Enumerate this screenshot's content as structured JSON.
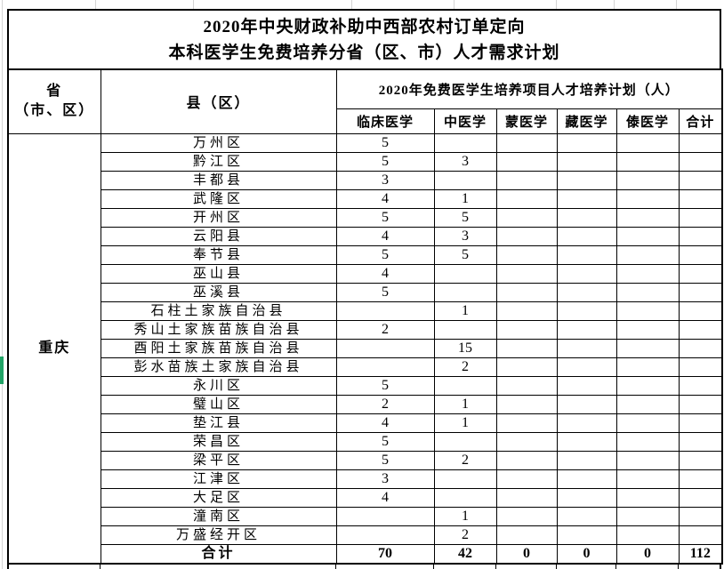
{
  "title": {
    "line1": "2020年中央财政补助中西部农村订单定向",
    "line2": "本科医学生免费培养分省（区、市）人才需求计划"
  },
  "table": {
    "province_col_header": {
      "line1": "省",
      "line2": "（市、区）"
    },
    "county_col_header": "县（区）",
    "group_header": "2020年免费医学生培养项目人才培养计划（人）",
    "columns": [
      "临床医学",
      "中医学",
      "蒙医学",
      "藏医学",
      "傣医学",
      "合计"
    ],
    "province": "重庆",
    "rows": [
      {
        "county": "万州区",
        "values": [
          "5",
          "",
          "",
          "",
          "",
          ""
        ]
      },
      {
        "county": "黔江区",
        "values": [
          "5",
          "3",
          "",
          "",
          "",
          ""
        ]
      },
      {
        "county": "丰都县",
        "values": [
          "3",
          "",
          "",
          "",
          "",
          ""
        ]
      },
      {
        "county": "武隆区",
        "values": [
          "4",
          "1",
          "",
          "",
          "",
          ""
        ]
      },
      {
        "county": "开州区",
        "values": [
          "5",
          "5",
          "",
          "",
          "",
          ""
        ]
      },
      {
        "county": "云阳县",
        "values": [
          "4",
          "3",
          "",
          "",
          "",
          ""
        ]
      },
      {
        "county": "奉节县",
        "values": [
          "5",
          "5",
          "",
          "",
          "",
          ""
        ]
      },
      {
        "county": "巫山县",
        "values": [
          "4",
          "",
          "",
          "",
          "",
          ""
        ]
      },
      {
        "county": "巫溪县",
        "values": [
          "5",
          "",
          "",
          "",
          "",
          ""
        ]
      },
      {
        "county": "石柱土家族自治县",
        "values": [
          "",
          "1",
          "",
          "",
          "",
          ""
        ]
      },
      {
        "county": "秀山土家族苗族自治县",
        "values": [
          "2",
          "",
          "",
          "",
          "",
          ""
        ]
      },
      {
        "county": "酉阳土家族苗族自治县",
        "values": [
          "",
          "15",
          "",
          "",
          "",
          ""
        ]
      },
      {
        "county": "彭水苗族土家族自治县",
        "values": [
          "",
          "2",
          "",
          "",
          "",
          ""
        ]
      },
      {
        "county": "永川区",
        "values": [
          "5",
          "",
          "",
          "",
          "",
          ""
        ]
      },
      {
        "county": "璧山区",
        "values": [
          "2",
          "1",
          "",
          "",
          "",
          ""
        ]
      },
      {
        "county": "垫江县",
        "values": [
          "4",
          "1",
          "",
          "",
          "",
          ""
        ]
      },
      {
        "county": "荣昌区",
        "values": [
          "5",
          "",
          "",
          "",
          "",
          ""
        ]
      },
      {
        "county": "梁平区",
        "values": [
          "5",
          "2",
          "",
          "",
          "",
          ""
        ]
      },
      {
        "county": "江津区",
        "values": [
          "3",
          "",
          "",
          "",
          "",
          ""
        ]
      },
      {
        "county": "大足区",
        "values": [
          "4",
          "",
          "",
          "",
          "",
          ""
        ]
      },
      {
        "county": "潼南区",
        "values": [
          "",
          "1",
          "",
          "",
          "",
          ""
        ]
      },
      {
        "county": "万盛经开区",
        "values": [
          "",
          "2",
          "",
          "",
          "",
          ""
        ]
      }
    ],
    "total_row": {
      "label": "合计",
      "values": [
        "70",
        "42",
        "0",
        "0",
        "0",
        "112"
      ]
    }
  },
  "colors": {
    "border": "#000000",
    "selection_green": "#21a366",
    "gridline": "#d4d4d4"
  }
}
